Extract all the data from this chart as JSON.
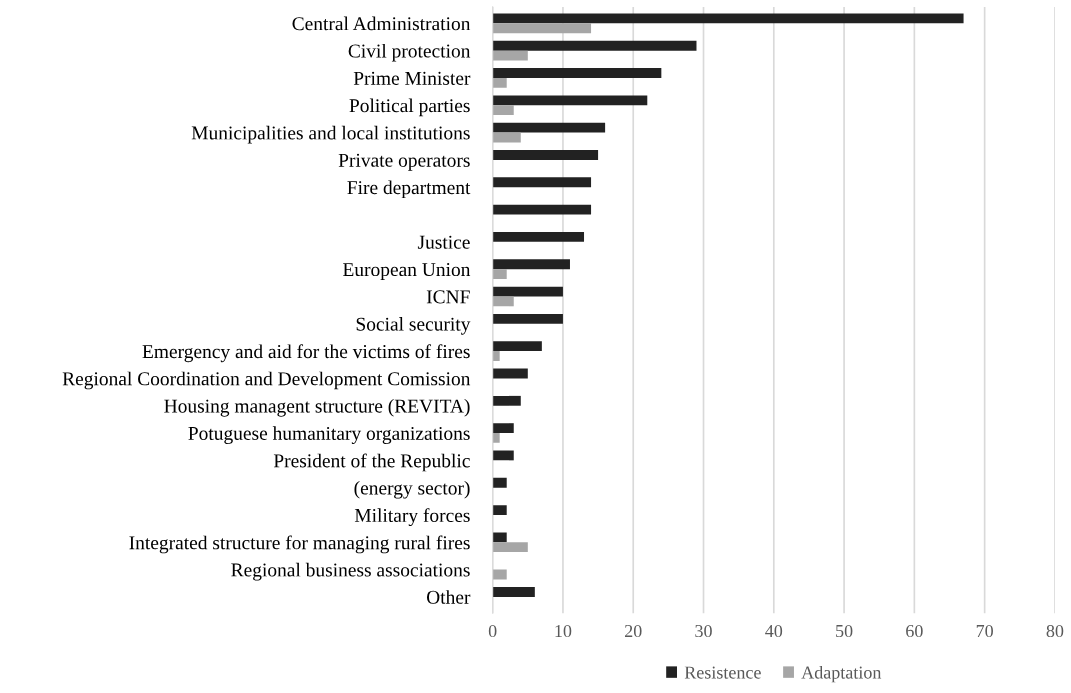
{
  "chart_data": {
    "type": "bar",
    "orientation": "horizontal",
    "categories": [
      "Central Administration",
      "Civil protection",
      "Prime Minister",
      "Political parties",
      "Municipalities and local institutions",
      "Private operators",
      "Fire department",
      null,
      "Justice",
      "European Union",
      "ICNF",
      "Social security",
      "Emergency and aid for the victims of fires",
      "Regional Coordination and Development Comission",
      "Housing managent structure (REVITA)",
      "Potuguese humanitary organizations",
      "President of the Republic",
      "(energy sector)",
      "Military forces",
      "Integrated structure for managing rural fires",
      "Regional business associations",
      "Other"
    ],
    "series": [
      {
        "name": "Resistence",
        "color": "#222222",
        "values": [
          67,
          29,
          24,
          22,
          16,
          15,
          14,
          14,
          13,
          11,
          10,
          10,
          7,
          5,
          4,
          3,
          3,
          2,
          2,
          2,
          0,
          6
        ]
      },
      {
        "name": "Adaptation",
        "color": "#a6a6a6",
        "values": [
          14,
          5,
          2,
          3,
          4,
          0,
          0,
          0,
          0,
          2,
          3,
          0,
          1,
          0,
          0,
          1,
          0,
          0,
          0,
          5,
          2,
          0
        ]
      }
    ],
    "xlim": [
      0,
      80
    ],
    "xticks": [
      0,
      10,
      20,
      30,
      40,
      50,
      60,
      70,
      80
    ],
    "grid": "x",
    "legend": "bottom"
  }
}
